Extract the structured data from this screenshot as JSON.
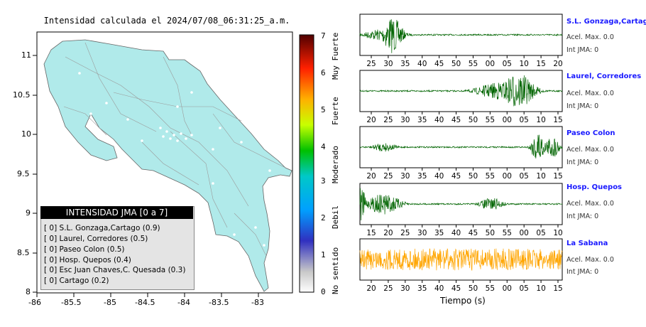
{
  "map": {
    "title": "Intensidad calculada el 2024/07/08_06:31:25_a.m.",
    "x_ticks": [
      "-86",
      "-85.5",
      "-85",
      "-84.5",
      "-84",
      "-83.5",
      "-83"
    ],
    "y_ticks": [
      "11",
      "10.5",
      "10",
      "9.5",
      "9",
      "8.5",
      "8"
    ],
    "xlim": [
      -86,
      -82.5
    ],
    "ylim": [
      8,
      11.3
    ],
    "land_color": "#b0eaea"
  },
  "colorbar": {
    "ticks": [
      "0",
      "1",
      "2",
      "3",
      "4",
      "5",
      "6",
      "7"
    ],
    "range": [
      0,
      7
    ],
    "category_labels": [
      "No sentido",
      "Debil",
      "Moderado",
      "Fuerte",
      "Muy Fuerte"
    ],
    "colors": [
      "#ffffff",
      "#b0b0b0",
      "#3030c0",
      "#00b0ff",
      "#00c000",
      "#c0ff00",
      "#ffb000",
      "#ff2000",
      "#500000"
    ]
  },
  "legend": {
    "title": "INTENSIDAD JMA [0 a 7]",
    "items": [
      "[ 0]  S.L. Gonzaga,Cartago (0.9)",
      "[ 0]  Laurel, Corredores (0.5)",
      "[ 0]  Paseo Colon (0.5)",
      "[ 0]  Hosp. Quepos (0.4)",
      "[ 0]  Esc Juan Chaves,C. Quesada (0.3)",
      "[ 0]  Cartago (0.2)"
    ]
  },
  "traces": [
    {
      "name": "S.L. Gonzaga,Cartago",
      "accel": "Acel. Max. 0.0",
      "jma": "Int JMA: 0",
      "color": "#006400",
      "ticks": [
        "25",
        "30",
        "35",
        "40",
        "45",
        "50",
        "55",
        "00",
        "05",
        "10",
        "15",
        "20"
      ]
    },
    {
      "name": "Laurel, Corredores",
      "accel": "Acel. Max. 0.0",
      "jma": "Int JMA: 0",
      "color": "#006400",
      "ticks": [
        "20",
        "25",
        "30",
        "35",
        "40",
        "45",
        "50",
        "55",
        "00",
        "05",
        "10",
        "15"
      ]
    },
    {
      "name": "Paseo Colon",
      "accel": "Acel. Max. 0.0",
      "jma": "Int JMA: 0",
      "color": "#006400",
      "ticks": [
        "20",
        "25",
        "30",
        "35",
        "40",
        "45",
        "50",
        "55",
        "00",
        "05",
        "10",
        "15"
      ]
    },
    {
      "name": "Hosp. Quepos",
      "accel": "Acel. Max. 0.0",
      "jma": "Int JMA: 0",
      "color": "#006400",
      "ticks": [
        "15",
        "20",
        "25",
        "30",
        "35",
        "40",
        "45",
        "50",
        "55",
        "00",
        "05",
        "10"
      ]
    },
    {
      "name": "La Sabana",
      "accel": "Acel. Max. 0.0",
      "jma": "Int JMA: 0",
      "color": "#ffa500",
      "ticks": [
        "20",
        "25",
        "30",
        "35",
        "40",
        "45",
        "50",
        "55",
        "00",
        "05",
        "10",
        "15"
      ]
    }
  ],
  "xlabel": "Tiempo (s)",
  "chart_data": [
    {
      "type": "heatmap",
      "title": "Intensidad calculada el 2024/07/08_06:31:25_a.m.",
      "xlim": [
        -86,
        -82.5
      ],
      "ylim": [
        8,
        11.3
      ],
      "colorbar_range": [
        0,
        7
      ]
    },
    {
      "type": "line",
      "xlabel": "Tiempo (s)",
      "series": [
        {
          "name": "S.L. Gonzaga,Cartago"
        },
        {
          "name": "Laurel, Corredores"
        },
        {
          "name": "Paseo Colon"
        },
        {
          "name": "Hosp. Quepos"
        },
        {
          "name": "La Sabana"
        }
      ]
    }
  ]
}
